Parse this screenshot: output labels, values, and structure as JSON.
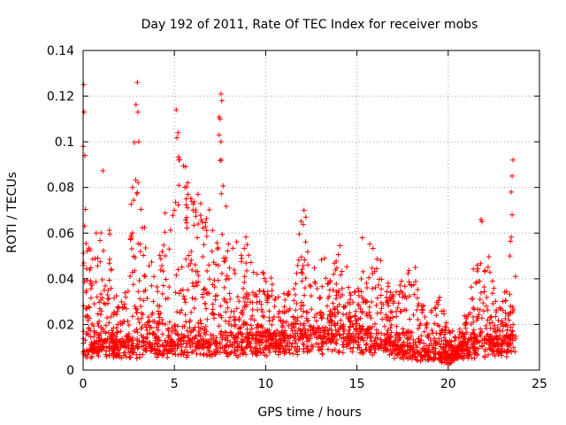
{
  "chart_data": {
    "type": "scatter",
    "title": "Day 192 of 2011, Rate Of TEC Index for receiver mobs",
    "xlabel": "GPS time / hours",
    "ylabel": "ROTI / TECUs",
    "xlim": [
      0,
      25
    ],
    "ylim": [
      0,
      0.14
    ],
    "xticks": [
      0,
      5,
      10,
      15,
      20,
      25
    ],
    "xtick_labels": [
      "0",
      "5",
      "10",
      "15",
      "20",
      "25"
    ],
    "yticks": [
      0,
      0.02,
      0.04,
      0.06,
      0.08,
      0.1,
      0.12,
      0.14
    ],
    "ytick_labels": [
      "0",
      "0.02",
      "0.04",
      "0.06",
      "0.08",
      "0.1",
      "0.12",
      "0.14"
    ],
    "grid": true,
    "marker": "plus",
    "color": "#ff0000",
    "envelope": [
      [
        0.0,
        0.125
      ],
      [
        0.1,
        0.113
      ],
      [
        0.3,
        0.058
      ],
      [
        0.6,
        0.055
      ],
      [
        1.0,
        0.092
      ],
      [
        1.3,
        0.085
      ],
      [
        1.6,
        0.045
      ],
      [
        2.0,
        0.03
      ],
      [
        2.5,
        0.055
      ],
      [
        2.9,
        0.126
      ],
      [
        3.2,
        0.095
      ],
      [
        3.5,
        0.055
      ],
      [
        4.0,
        0.04
      ],
      [
        4.4,
        0.075
      ],
      [
        4.8,
        0.065
      ],
      [
        5.1,
        0.114
      ],
      [
        5.5,
        0.095
      ],
      [
        6.0,
        0.085
      ],
      [
        6.5,
        0.075
      ],
      [
        7.0,
        0.07
      ],
      [
        7.5,
        0.121
      ],
      [
        8.0,
        0.06
      ],
      [
        9.0,
        0.06
      ],
      [
        9.5,
        0.05
      ],
      [
        10.0,
        0.04
      ],
      [
        11.0,
        0.035
      ],
      [
        11.5,
        0.045
      ],
      [
        12.0,
        0.07
      ],
      [
        12.5,
        0.04
      ],
      [
        13.0,
        0.05
      ],
      [
        13.5,
        0.045
      ],
      [
        14.0,
        0.055
      ],
      [
        15.0,
        0.035
      ],
      [
        15.5,
        0.058
      ],
      [
        16.0,
        0.05
      ],
      [
        17.0,
        0.04
      ],
      [
        18.0,
        0.045
      ],
      [
        18.5,
        0.035
      ],
      [
        19.0,
        0.025
      ],
      [
        19.5,
        0.035
      ],
      [
        20.0,
        0.02
      ],
      [
        20.5,
        0.015
      ],
      [
        21.0,
        0.025
      ],
      [
        21.5,
        0.055
      ],
      [
        21.8,
        0.066
      ],
      [
        22.2,
        0.055
      ],
      [
        22.8,
        0.035
      ],
      [
        23.3,
        0.04
      ],
      [
        23.5,
        0.092
      ],
      [
        23.7,
        0.045
      ]
    ],
    "baseline": [
      [
        0.0,
        0.01
      ],
      [
        5.0,
        0.01
      ],
      [
        10.0,
        0.012
      ],
      [
        15.0,
        0.015
      ],
      [
        18.0,
        0.008
      ],
      [
        20.0,
        0.005
      ],
      [
        21.0,
        0.01
      ],
      [
        23.7,
        0.012
      ]
    ],
    "outliers": [
      {
        "x": 0.03,
        "y": 0.125
      },
      {
        "x": 0.05,
        "y": 0.113
      },
      {
        "x": 0.1,
        "y": 0.094
      },
      {
        "x": 2.97,
        "y": 0.126
      },
      {
        "x": 3.0,
        "y": 0.113
      },
      {
        "x": 3.05,
        "y": 0.1
      },
      {
        "x": 5.1,
        "y": 0.114
      },
      {
        "x": 5.2,
        "y": 0.104
      },
      {
        "x": 7.55,
        "y": 0.121
      },
      {
        "x": 7.6,
        "y": 0.118
      },
      {
        "x": 7.5,
        "y": 0.11
      },
      {
        "x": 7.55,
        "y": 0.1
      },
      {
        "x": 7.45,
        "y": 0.103
      },
      {
        "x": 12.1,
        "y": 0.07
      },
      {
        "x": 12.2,
        "y": 0.067
      },
      {
        "x": 15.3,
        "y": 0.058
      },
      {
        "x": 23.55,
        "y": 0.092
      },
      {
        "x": 23.5,
        "y": 0.085
      },
      {
        "x": 23.45,
        "y": 0.078
      },
      {
        "x": 23.5,
        "y": 0.068
      },
      {
        "x": 21.8,
        "y": 0.066
      },
      {
        "x": 21.85,
        "y": 0.065
      },
      {
        "x": 16.3,
        "y": 0.048
      },
      {
        "x": 18.2,
        "y": 0.045
      }
    ]
  }
}
